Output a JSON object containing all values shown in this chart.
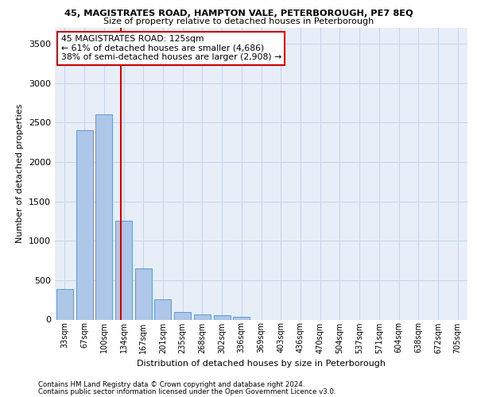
{
  "title_line1": "45, MAGISTRATES ROAD, HAMPTON VALE, PETERBOROUGH, PE7 8EQ",
  "title_line2": "Size of property relative to detached houses in Peterborough",
  "xlabel": "Distribution of detached houses by size in Peterborough",
  "ylabel": "Number of detached properties",
  "footnote1": "Contains HM Land Registry data © Crown copyright and database right 2024.",
  "footnote2": "Contains public sector information licensed under the Open Government Licence v3.0.",
  "categories": [
    "33sqm",
    "67sqm",
    "100sqm",
    "134sqm",
    "167sqm",
    "201sqm",
    "235sqm",
    "268sqm",
    "302sqm",
    "336sqm",
    "369sqm",
    "403sqm",
    "436sqm",
    "470sqm",
    "504sqm",
    "537sqm",
    "571sqm",
    "604sqm",
    "638sqm",
    "672sqm",
    "705sqm"
  ],
  "values": [
    390,
    2400,
    2600,
    1250,
    650,
    260,
    100,
    65,
    60,
    40,
    0,
    0,
    0,
    0,
    0,
    0,
    0,
    0,
    0,
    0,
    0
  ],
  "bar_color": "#aec6e8",
  "bar_edge_color": "#5b9bd5",
  "grid_color": "#c8d4e8",
  "background_color": "#e8eef8",
  "annotation_text": "45 MAGISTRATES ROAD: 125sqm\n← 61% of detached houses are smaller (4,686)\n38% of semi-detached houses are larger (2,908) →",
  "annotation_box_color": "#ffffff",
  "annotation_border_color": "#cc0000",
  "vline_x": 2.85,
  "vline_color": "#cc0000",
  "ylim": [
    0,
    3700
  ],
  "yticks": [
    0,
    500,
    1000,
    1500,
    2000,
    2500,
    3000,
    3500
  ]
}
